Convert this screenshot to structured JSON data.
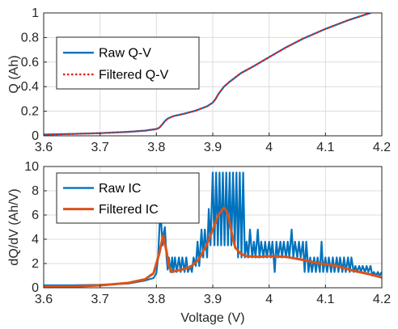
{
  "chart_data": [
    {
      "type": "line",
      "title": "",
      "xlabel": "",
      "ylabel": "Q (Ah)",
      "xlim": [
        3.6,
        4.2
      ],
      "ylim": [
        0,
        1
      ],
      "xticks": [
        "3.6",
        "3.7",
        "3.8",
        "3.9",
        "4",
        "4.1",
        "4.2"
      ],
      "yticks": [
        "0",
        "0.2",
        "0.4",
        "0.6",
        "0.8",
        "1"
      ],
      "grid": true,
      "legend": "top-left",
      "series": [
        {
          "name": "Raw Q-V",
          "color": "#0072bd",
          "style": "solid",
          "x": [
            3.6,
            3.65,
            3.7,
            3.75,
            3.78,
            3.8,
            3.805,
            3.81,
            3.815,
            3.82,
            3.83,
            3.85,
            3.87,
            3.89,
            3.9,
            3.905,
            3.91,
            3.915,
            3.92,
            3.93,
            3.95,
            3.97,
            4.0,
            4.03,
            4.06,
            4.1,
            4.14,
            4.18
          ],
          "y": [
            0.01,
            0.015,
            0.022,
            0.032,
            0.042,
            0.055,
            0.065,
            0.09,
            0.12,
            0.14,
            0.16,
            0.18,
            0.205,
            0.24,
            0.27,
            0.3,
            0.34,
            0.37,
            0.4,
            0.44,
            0.51,
            0.56,
            0.64,
            0.72,
            0.79,
            0.87,
            0.94,
            1.0
          ]
        },
        {
          "name": "Filtered Q-V",
          "color": "#e8201a",
          "style": "dotted",
          "x": [
            3.6,
            3.65,
            3.7,
            3.75,
            3.78,
            3.8,
            3.805,
            3.81,
            3.815,
            3.82,
            3.83,
            3.85,
            3.87,
            3.89,
            3.9,
            3.905,
            3.91,
            3.915,
            3.92,
            3.93,
            3.95,
            3.97,
            4.0,
            4.03,
            4.06,
            4.1,
            4.14,
            4.18
          ],
          "y": [
            0.01,
            0.015,
            0.022,
            0.032,
            0.042,
            0.055,
            0.065,
            0.09,
            0.12,
            0.14,
            0.16,
            0.18,
            0.205,
            0.24,
            0.27,
            0.3,
            0.34,
            0.37,
            0.4,
            0.44,
            0.51,
            0.56,
            0.64,
            0.72,
            0.79,
            0.87,
            0.94,
            1.0
          ]
        }
      ]
    },
    {
      "type": "line",
      "title": "",
      "xlabel": "Voltage (V)",
      "ylabel": "dQ/dV (Ah/V)",
      "xlim": [
        3.6,
        4.2
      ],
      "ylim": [
        0,
        10
      ],
      "xticks": [
        "3.6",
        "3.7",
        "3.8",
        "3.9",
        "4",
        "4.1",
        "4.2"
      ],
      "yticks": [
        "0",
        "2",
        "4",
        "6",
        "8",
        "10"
      ],
      "grid": true,
      "legend": "top-left",
      "series": [
        {
          "name": "Raw IC",
          "color": "#0072bd",
          "style": "solid",
          "x": [
            3.6,
            3.65,
            3.7,
            3.75,
            3.78,
            3.795,
            3.8,
            3.803,
            3.805,
            3.807,
            3.809,
            3.811,
            3.813,
            3.815,
            3.818,
            3.82,
            3.822,
            3.825,
            3.828,
            3.83,
            3.833,
            3.836,
            3.84,
            3.843,
            3.846,
            3.85,
            3.853,
            3.856,
            3.86,
            3.863,
            3.866,
            3.87,
            3.873,
            3.876,
            3.88,
            3.883,
            3.886,
            3.89,
            3.893,
            3.896,
            3.9,
            3.903,
            3.906,
            3.909,
            3.912,
            3.915,
            3.918,
            3.921,
            3.924,
            3.927,
            3.93,
            3.933,
            3.936,
            3.939,
            3.942,
            3.945,
            3.948,
            3.951,
            3.954,
            3.957,
            3.96,
            3.963,
            3.966,
            3.97,
            3.973,
            3.976,
            3.98,
            3.983,
            3.986,
            3.99,
            3.993,
            3.996,
            4.0,
            4.003,
            4.006,
            4.01,
            4.013,
            4.016,
            4.02,
            4.023,
            4.026,
            4.03,
            4.033,
            4.036,
            4.04,
            4.043,
            4.046,
            4.05,
            4.053,
            4.056,
            4.06,
            4.063,
            4.066,
            4.07,
            4.073,
            4.076,
            4.08,
            4.083,
            4.086,
            4.09,
            4.093,
            4.096,
            4.1,
            4.103,
            4.106,
            4.11,
            4.113,
            4.116,
            4.12,
            4.123,
            4.126,
            4.13,
            4.133,
            4.136,
            4.14,
            4.143,
            4.146,
            4.15,
            4.153,
            4.156,
            4.16,
            4.163,
            4.166,
            4.17,
            4.173,
            4.176,
            4.18,
            4.183,
            4.186,
            4.19,
            4.193,
            4.196,
            4.2
          ],
          "y": [
            0.2,
            0.2,
            0.25,
            0.35,
            0.6,
            0.8,
            1.2,
            2.5,
            4.5,
            6.5,
            5.0,
            3.5,
            4.5,
            5.0,
            2.5,
            1.5,
            2.5,
            1.3,
            2.5,
            1.3,
            2.5,
            1.3,
            2.5,
            1.3,
            2.5,
            1.3,
            2.5,
            1.3,
            1.8,
            1.3,
            2.5,
            1.8,
            3.8,
            1.8,
            4.8,
            2.5,
            4.8,
            2.5,
            6.5,
            3.5,
            9.5,
            3.5,
            9.5,
            3.5,
            9.5,
            3.5,
            9.5,
            3.5,
            9.5,
            3.5,
            9.5,
            3.5,
            9.5,
            3.5,
            9.5,
            2.5,
            9.5,
            2.5,
            9.5,
            2.5,
            3.8,
            2.5,
            4.8,
            2.5,
            3.8,
            2.5,
            4.8,
            2.5,
            3.8,
            2.5,
            3.8,
            2.5,
            3.8,
            2.5,
            3.8,
            1.3,
            3.8,
            2.5,
            3.8,
            2.5,
            3.8,
            2.5,
            3.8,
            2.5,
            4.8,
            2.5,
            3.8,
            2.5,
            3.8,
            2.5,
            3.8,
            1.3,
            3.8,
            1.3,
            2.5,
            1.3,
            2.5,
            1.3,
            2.5,
            1.3,
            3.8,
            1.3,
            2.5,
            1.3,
            2.5,
            1.3,
            2.5,
            1.3,
            2.5,
            1.3,
            2.5,
            1.3,
            2.5,
            1.3,
            2.5,
            1.3,
            2.5,
            1.3,
            1.8,
            1.3,
            1.8,
            1.3,
            1.8,
            1.3,
            1.8,
            1.3,
            1.8,
            1.0,
            1.3,
            1.0,
            1.3,
            1.0,
            1.3
          ]
        },
        {
          "name": "Filtered IC",
          "color": "#d95319",
          "style": "solid",
          "x": [
            3.6,
            3.65,
            3.7,
            3.75,
            3.78,
            3.795,
            3.805,
            3.812,
            3.818,
            3.822,
            3.828,
            3.835,
            3.845,
            3.86,
            3.875,
            3.89,
            3.9,
            3.91,
            3.92,
            3.925,
            3.93,
            3.935,
            3.94,
            3.95,
            3.96,
            3.98,
            4.0,
            4.03,
            4.06,
            4.09,
            4.12,
            4.15,
            4.18,
            4.2
          ],
          "y": [
            0.1,
            0.1,
            0.2,
            0.4,
            0.7,
            1.2,
            2.8,
            4.3,
            3.0,
            1.8,
            1.3,
            1.4,
            1.5,
            1.7,
            2.3,
            3.6,
            4.8,
            6.0,
            6.6,
            6.3,
            5.4,
            4.2,
            3.3,
            2.8,
            2.6,
            2.55,
            2.6,
            2.55,
            2.3,
            2.0,
            1.8,
            1.4,
            1.1,
            0.85
          ]
        }
      ]
    }
  ]
}
